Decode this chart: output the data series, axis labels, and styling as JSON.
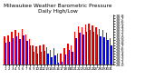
{
  "title": "Milwaukee Weather Barometric Pressure\nDaily High/Low",
  "title_fontsize": 4.2,
  "background_color": "#ffffff",
  "high_color": "#ff0000",
  "low_color": "#0000ff",
  "ylabel_fontsize": 3.2,
  "xlabel_fontsize": 2.8,
  "ylim": [
    29.0,
    30.85
  ],
  "yticks": [
    29.0,
    29.1,
    29.2,
    29.3,
    29.4,
    29.5,
    29.6,
    29.7,
    29.8,
    29.9,
    30.0,
    30.1,
    30.2,
    30.3,
    30.4,
    30.5,
    30.6,
    30.7,
    30.8
  ],
  "dates": [
    "1",
    "2",
    "3",
    "4",
    "5",
    "6",
    "7",
    "8",
    "9",
    "10",
    "11",
    "12",
    "13",
    "14",
    "15",
    "16",
    "17",
    "18",
    "19",
    "20",
    "21",
    "22",
    "23",
    "24",
    "25",
    "26",
    "27",
    "28",
    "29",
    "30",
    "31"
  ],
  "highs": [
    30.05,
    30.08,
    30.22,
    30.28,
    30.18,
    30.32,
    30.1,
    29.95,
    29.72,
    29.68,
    29.72,
    29.75,
    29.65,
    29.55,
    29.62,
    29.42,
    29.42,
    29.62,
    29.78,
    29.72,
    30.22,
    30.42,
    30.38,
    30.48,
    30.52,
    30.45,
    30.38,
    30.32,
    30.28,
    30.18,
    29.98
  ],
  "lows": [
    29.82,
    29.85,
    29.98,
    30.05,
    29.95,
    30.08,
    29.88,
    29.72,
    29.48,
    29.42,
    29.48,
    29.52,
    29.4,
    29.28,
    29.35,
    29.08,
    29.12,
    29.38,
    29.55,
    29.48,
    29.98,
    30.18,
    30.12,
    30.22,
    30.28,
    30.2,
    30.12,
    30.05,
    30.0,
    29.92,
    29.72
  ]
}
